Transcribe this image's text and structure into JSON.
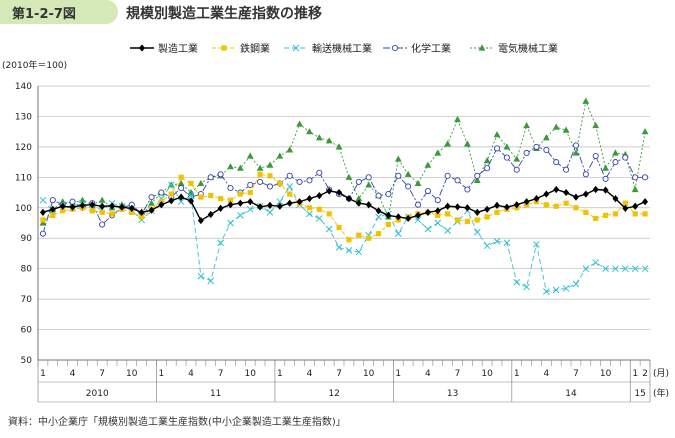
{
  "figure": {
    "number": "第1-2-7図",
    "title": "規模別製造工業生産指数の推移",
    "source": "資料：中小企業庁「規模別製造工業生産指数(中小企業製造工業生産指数)」"
  },
  "chart_data": {
    "type": "line",
    "title": "規模別製造工業生産指数の推移",
    "ylabel": "(2010年＝100)",
    "xlabel_month_unit": "(月)",
    "xlabel_year_unit": "(年)",
    "ylim": [
      50,
      140
    ],
    "yticks": [
      50,
      60,
      70,
      80,
      90,
      100,
      110,
      120,
      130,
      140
    ],
    "grid": "horizontal",
    "legend_position": "top",
    "month_labels": [
      "1",
      "4",
      "7",
      "10",
      "1",
      "4",
      "7",
      "10",
      "1",
      "4",
      "7",
      "10",
      "1",
      "4",
      "7",
      "10",
      "1",
      "4",
      "7",
      "10",
      "1",
      "2"
    ],
    "year_labels": [
      "2010",
      "11",
      "12",
      "13",
      "14",
      "15"
    ],
    "x_count": 62,
    "series": [
      {
        "name": "製造工業",
        "color": "#000000",
        "marker": "diamond",
        "values": [
          98.5,
          99.5,
          100.5,
          100.2,
          100.8,
          101.0,
          100.5,
          100.6,
          100.2,
          99.8,
          98.5,
          99.2,
          101.0,
          102.3,
          103.5,
          102.2,
          95.8,
          97.8,
          99.8,
          101.0,
          101.5,
          102.0,
          100.3,
          100.8,
          100.5,
          101.5,
          102.0,
          103.0,
          104.0,
          105.5,
          105.0,
          103.0,
          101.5,
          101.0,
          99.0,
          97.5,
          97.0,
          96.5,
          97.5,
          98.5,
          99.0,
          100.5,
          100.3,
          100.0,
          98.5,
          99.5,
          100.8,
          100.2,
          101.0,
          102.0,
          103.0,
          104.5,
          106.0,
          105.0,
          103.5,
          104.5,
          106.0,
          105.8,
          103.0,
          99.8,
          100.5,
          102.0
        ]
      },
      {
        "name": "鉄鋼業",
        "color": "#f2c200",
        "marker": "square",
        "values": [
          96.0,
          97.5,
          99.0,
          99.5,
          100.0,
          99.0,
          98.5,
          98.0,
          99.5,
          98.5,
          97.0,
          99.5,
          102.0,
          104.5,
          110.0,
          108.0,
          103.5,
          104.0,
          103.0,
          102.5,
          104.5,
          105.0,
          111.0,
          110.5,
          108.0,
          104.5,
          101.5,
          100.0,
          99.5,
          98.0,
          93.5,
          89.5,
          91.0,
          90.0,
          91.5,
          94.5,
          96.0,
          97.0,
          98.0,
          98.5,
          97.5,
          98.0,
          96.0,
          95.5,
          96.0,
          97.0,
          98.5,
          99.5,
          100.0,
          101.0,
          102.0,
          101.0,
          100.5,
          101.5,
          100.0,
          98.5,
          96.5,
          97.5,
          98.0,
          101.5,
          98.0,
          98.0
        ]
      },
      {
        "name": "輸送機械工業",
        "color": "#33c0cf",
        "marker": "x",
        "values": [
          102.5,
          99.0,
          101.0,
          100.0,
          101.5,
          100.0,
          99.5,
          101.5,
          100.5,
          99.0,
          96.0,
          99.0,
          103.0,
          107.5,
          102.0,
          104.0,
          77.5,
          76.0,
          88.5,
          95.0,
          97.5,
          99.5,
          100.5,
          98.5,
          102.0,
          107.0,
          101.0,
          98.0,
          96.5,
          93.0,
          87.0,
          86.0,
          85.5,
          91.0,
          97.0,
          98.0,
          91.5,
          97.0,
          96.0,
          93.0,
          95.0,
          92.5,
          95.5,
          99.0,
          92.0,
          87.5,
          89.0,
          88.5,
          75.5,
          74.0,
          88.0,
          72.5,
          73.0,
          73.5,
          75.0,
          80.0,
          82.0,
          80.0,
          80.0,
          80.0,
          80.0,
          80.0
        ]
      },
      {
        "name": "化学工業",
        "color": "#3344aa",
        "marker": "circle",
        "values": [
          91.5,
          102.5,
          101.0,
          102.0,
          100.0,
          101.5,
          94.5,
          97.5,
          100.0,
          101.0,
          98.0,
          103.5,
          105.0,
          103.5,
          106.5,
          103.5,
          104.5,
          110.0,
          111.0,
          106.5,
          105.0,
          107.5,
          108.5,
          107.0,
          108.0,
          110.5,
          108.5,
          109.0,
          111.5,
          106.0,
          104.5,
          103.0,
          108.5,
          110.0,
          104.0,
          104.5,
          110.5,
          107.0,
          101.0,
          105.5,
          102.5,
          110.5,
          109.0,
          106.0,
          110.5,
          113.0,
          119.5,
          116.5,
          112.5,
          118.0,
          120.0,
          119.0,
          115.0,
          112.5,
          120.5,
          111.0,
          117.0,
          109.5,
          115.0,
          116.5,
          110.0,
          110.0
        ]
      },
      {
        "name": "電気機械工業",
        "color": "#3a9a3a",
        "marker": "triangle",
        "values": [
          95.0,
          99.5,
          102.0,
          101.5,
          102.5,
          101.0,
          102.5,
          100.0,
          101.0,
          100.5,
          97.5,
          101.5,
          105.0,
          107.5,
          108.0,
          105.0,
          108.0,
          110.0,
          110.5,
          113.5,
          113.0,
          117.0,
          113.0,
          114.0,
          117.0,
          119.0,
          127.5,
          125.0,
          123.0,
          122.0,
          120.0,
          110.0,
          103.0,
          107.5,
          104.0,
          97.0,
          116.0,
          111.0,
          108.0,
          114.0,
          118.0,
          121.0,
          129.0,
          121.0,
          109.0,
          115.5,
          124.0,
          120.0,
          116.0,
          127.0,
          119.5,
          123.0,
          126.5,
          125.5,
          118.0,
          135.0,
          127.0,
          113.0,
          118.0,
          117.5,
          106.0,
          125.0
        ]
      }
    ]
  }
}
